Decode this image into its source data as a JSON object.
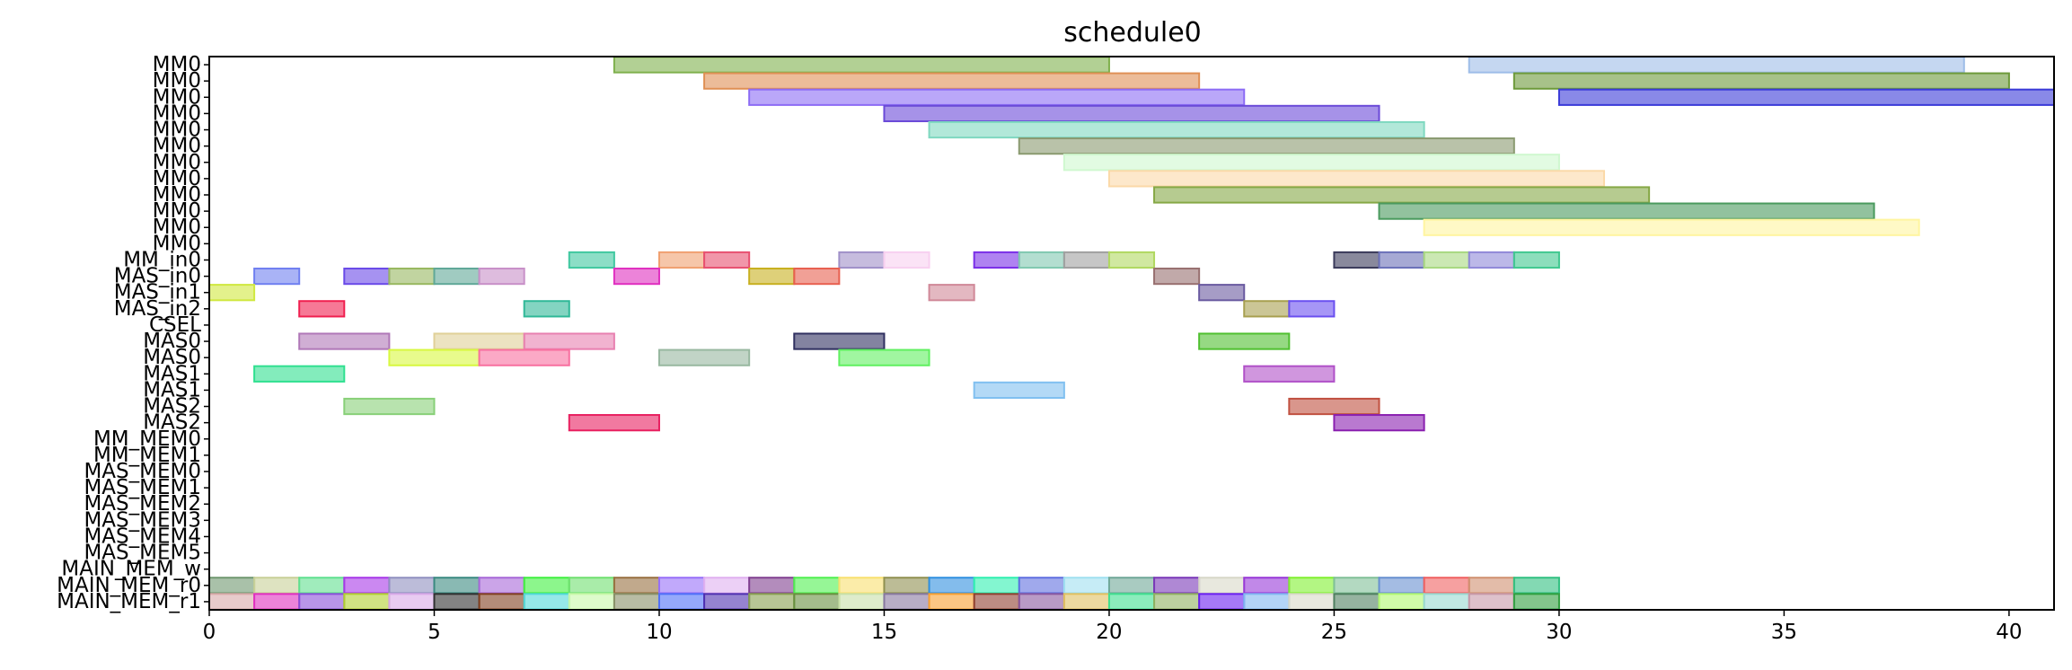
{
  "chart_data": {
    "type": "gantt",
    "title": "schedule0",
    "xlim": [
      0,
      41
    ],
    "x_ticks": [
      0,
      5,
      10,
      15,
      20,
      25,
      30,
      35,
      40
    ],
    "y_labels": [
      "MM0",
      "MM0",
      "MM0",
      "MM0",
      "MM0",
      "MM0",
      "MM0",
      "MM0",
      "MM0",
      "MM0",
      "MM0",
      "MM0",
      "MM_in0",
      "MAS_in0",
      "MAS_in1",
      "MAS_in2",
      "CSEL",
      "MAS0",
      "MAS0",
      "MAS1",
      "MAS1",
      "MAS2",
      "MAS2",
      "MM_MEM0",
      "MM_MEM1",
      "MAS_MEM0",
      "MAS_MEM1",
      "MAS_MEM2",
      "MAS_MEM3",
      "MAS_MEM4",
      "MAS_MEM5",
      "MAIN_MEM_w",
      "MAIN_MEM_r0",
      "MAIN_MEM_r1"
    ],
    "tasks": [
      {
        "row": 0,
        "start": 9,
        "end": 20,
        "color": "#7fb04d"
      },
      {
        "row": 0,
        "start": 28,
        "end": 39,
        "color": "#9ebde8"
      },
      {
        "row": 1,
        "start": 11,
        "end": 22,
        "color": "#e09055"
      },
      {
        "row": 1,
        "start": 29,
        "end": 40,
        "color": "#6d9a3a"
      },
      {
        "row": 2,
        "start": 12,
        "end": 23,
        "color": "#8c6cf5"
      },
      {
        "row": 2,
        "start": 30,
        "end": 41,
        "color": "#3a3ad8"
      },
      {
        "row": 3,
        "start": 15,
        "end": 26,
        "color": "#6a4ad8"
      },
      {
        "row": 4,
        "start": 16,
        "end": 27,
        "color": "#7fd8c0"
      },
      {
        "row": 5,
        "start": 18,
        "end": 29,
        "color": "#8a9a70"
      },
      {
        "row": 6,
        "start": 19,
        "end": 30,
        "color": "#cff8cf"
      },
      {
        "row": 7,
        "start": 20,
        "end": 31,
        "color": "#fbd9a8"
      },
      {
        "row": 8,
        "start": 21,
        "end": 32,
        "color": "#86a846"
      },
      {
        "row": 9,
        "start": 26,
        "end": 37,
        "color": "#4a9a5e"
      },
      {
        "row": 10,
        "start": 27,
        "end": 38,
        "color": "#fff5a0"
      },
      {
        "row": 12,
        "start": 8,
        "end": 9,
        "color": "#40c8a0"
      },
      {
        "row": 12,
        "start": 10,
        "end": 11,
        "color": "#f0a070"
      },
      {
        "row": 12,
        "start": 11,
        "end": 12,
        "color": "#e85070"
      },
      {
        "row": 12,
        "start": 14,
        "end": 15,
        "color": "#a090c8"
      },
      {
        "row": 12,
        "start": 15,
        "end": 16,
        "color": "#f8d0f0"
      },
      {
        "row": 12,
        "start": 17,
        "end": 18,
        "color": "#7a2ee8"
      },
      {
        "row": 12,
        "start": 18,
        "end": 19,
        "color": "#80c8b0"
      },
      {
        "row": 12,
        "start": 19,
        "end": 20,
        "color": "#a0a0a0"
      },
      {
        "row": 12,
        "start": 20,
        "end": 21,
        "color": "#b0d860"
      },
      {
        "row": 12,
        "start": 25,
        "end": 26,
        "color": "#3a3a5a"
      },
      {
        "row": 12,
        "start": 26,
        "end": 27,
        "color": "#6a70b8"
      },
      {
        "row": 12,
        "start": 27,
        "end": 28,
        "color": "#a8d880"
      },
      {
        "row": 12,
        "start": 28,
        "end": 29,
        "color": "#9088d8"
      },
      {
        "row": 12,
        "start": 29,
        "end": 30,
        "color": "#40c890"
      },
      {
        "row": 13,
        "start": 1,
        "end": 2,
        "color": "#7080f0"
      },
      {
        "row": 13,
        "start": 3,
        "end": 4,
        "color": "#6a4ae8"
      },
      {
        "row": 13,
        "start": 4,
        "end": 5,
        "color": "#98b860"
      },
      {
        "row": 13,
        "start": 5,
        "end": 6,
        "color": "#60a898"
      },
      {
        "row": 13,
        "start": 6,
        "end": 7,
        "color": "#c890c8"
      },
      {
        "row": 13,
        "start": 9,
        "end": 10,
        "color": "#e030c0"
      },
      {
        "row": 13,
        "start": 12,
        "end": 13,
        "color": "#c8b020"
      },
      {
        "row": 13,
        "start": 13,
        "end": 14,
        "color": "#e86050"
      },
      {
        "row": 13,
        "start": 21,
        "end": 22,
        "color": "#987070"
      },
      {
        "row": 14,
        "start": 0,
        "end": 1,
        "color": "#d0e840"
      },
      {
        "row": 14,
        "start": 16,
        "end": 17,
        "color": "#d08898"
      },
      {
        "row": 14,
        "start": 22,
        "end": 23,
        "color": "#6a5aa0"
      },
      {
        "row": 15,
        "start": 2,
        "end": 3,
        "color": "#f02050"
      },
      {
        "row": 15,
        "start": 7,
        "end": 8,
        "color": "#30b898"
      },
      {
        "row": 15,
        "start": 23,
        "end": 24,
        "color": "#a8a050"
      },
      {
        "row": 15,
        "start": 24,
        "end": 25,
        "color": "#6a50f0"
      },
      {
        "row": 17,
        "start": 2,
        "end": 4,
        "color": "#b078b8"
      },
      {
        "row": 17,
        "start": 5,
        "end": 7,
        "color": "#e0d098"
      },
      {
        "row": 17,
        "start": 7,
        "end": 9,
        "color": "#e880b0"
      },
      {
        "row": 17,
        "start": 13,
        "end": 15,
        "color": "#303060"
      },
      {
        "row": 17,
        "start": 22,
        "end": 24,
        "color": "#50c030"
      },
      {
        "row": 18,
        "start": 4,
        "end": 6,
        "color": "#d8f840"
      },
      {
        "row": 18,
        "start": 6,
        "end": 8,
        "color": "#f870a0"
      },
      {
        "row": 18,
        "start": 10,
        "end": 12,
        "color": "#98b8a0"
      },
      {
        "row": 18,
        "start": 14,
        "end": 16,
        "color": "#60f060"
      },
      {
        "row": 19,
        "start": 1,
        "end": 3,
        "color": "#30e090"
      },
      {
        "row": 19,
        "start": 23,
        "end": 25,
        "color": "#b050c8"
      },
      {
        "row": 20,
        "start": 17,
        "end": 19,
        "color": "#80c0f0"
      },
      {
        "row": 21,
        "start": 3,
        "end": 5,
        "color": "#88d078"
      },
      {
        "row": 21,
        "start": 24,
        "end": 26,
        "color": "#c05040"
      },
      {
        "row": 22,
        "start": 8,
        "end": 10,
        "color": "#e82060"
      },
      {
        "row": 22,
        "start": 25,
        "end": 27,
        "color": "#8a20b0"
      },
      {
        "row": 32,
        "start": 0,
        "end": 1,
        "color": "#709870"
      },
      {
        "row": 32,
        "start": 1,
        "end": 2,
        "color": "#c8d098"
      },
      {
        "row": 32,
        "start": 2,
        "end": 3,
        "color": "#60e090"
      },
      {
        "row": 32,
        "start": 3,
        "end": 4,
        "color": "#a838e8"
      },
      {
        "row": 32,
        "start": 4,
        "end": 5,
        "color": "#9090c0"
      },
      {
        "row": 32,
        "start": 5,
        "end": 6,
        "color": "#3a8a80"
      },
      {
        "row": 32,
        "start": 6,
        "end": 7,
        "color": "#a868d8"
      },
      {
        "row": 32,
        "start": 7,
        "end": 8,
        "color": "#40f040"
      },
      {
        "row": 32,
        "start": 8,
        "end": 9,
        "color": "#70e070"
      },
      {
        "row": 32,
        "start": 9,
        "end": 10,
        "color": "#987040"
      },
      {
        "row": 32,
        "start": 10,
        "end": 11,
        "color": "#9870f8"
      },
      {
        "row": 32,
        "start": 11,
        "end": 12,
        "color": "#e0b0f0"
      },
      {
        "row": 32,
        "start": 12,
        "end": 13,
        "color": "#804090"
      },
      {
        "row": 32,
        "start": 13,
        "end": 14,
        "color": "#50f050"
      },
      {
        "row": 32,
        "start": 14,
        "end": 15,
        "color": "#f8e070"
      },
      {
        "row": 32,
        "start": 15,
        "end": 16,
        "color": "#909050"
      },
      {
        "row": 32,
        "start": 16,
        "end": 17,
        "color": "#3090e0"
      },
      {
        "row": 32,
        "start": 17,
        "end": 18,
        "color": "#30f0b0"
      },
      {
        "row": 32,
        "start": 18,
        "end": 19,
        "color": "#6070e0"
      },
      {
        "row": 32,
        "start": 19,
        "end": 20,
        "color": "#a0e0f0"
      },
      {
        "row": 32,
        "start": 20,
        "end": 21,
        "color": "#70a898"
      },
      {
        "row": 32,
        "start": 21,
        "end": 22,
        "color": "#7a38b8"
      },
      {
        "row": 32,
        "start": 22,
        "end": 23,
        "color": "#d8d8c8"
      },
      {
        "row": 32,
        "start": 23,
        "end": 24,
        "color": "#9838d8"
      },
      {
        "row": 32,
        "start": 24,
        "end": 25,
        "color": "#80f030"
      },
      {
        "row": 32,
        "start": 25,
        "end": 26,
        "color": "#80c098"
      },
      {
        "row": 32,
        "start": 26,
        "end": 27,
        "color": "#6890d0"
      },
      {
        "row": 32,
        "start": 27,
        "end": 28,
        "color": "#f06060"
      },
      {
        "row": 32,
        "start": 28,
        "end": 29,
        "color": "#d09070"
      },
      {
        "row": 32,
        "start": 29,
        "end": 30,
        "color": "#30c080"
      },
      {
        "row": 33,
        "start": 0,
        "end": 1,
        "color": "#d8a8a8"
      },
      {
        "row": 33,
        "start": 1,
        "end": 2,
        "color": "#e030c0"
      },
      {
        "row": 33,
        "start": 2,
        "end": 3,
        "color": "#8a50d8"
      },
      {
        "row": 33,
        "start": 3,
        "end": 4,
        "color": "#b0d030"
      },
      {
        "row": 33,
        "start": 4,
        "end": 5,
        "color": "#d8a8e8"
      },
      {
        "row": 33,
        "start": 5,
        "end": 6,
        "color": "#303030"
      },
      {
        "row": 33,
        "start": 6,
        "end": 7,
        "color": "#804020"
      },
      {
        "row": 33,
        "start": 7,
        "end": 8,
        "color": "#50d8d8"
      },
      {
        "row": 33,
        "start": 8,
        "end": 9,
        "color": "#c8f8a8"
      },
      {
        "row": 33,
        "start": 9,
        "end": 10,
        "color": "#889068"
      },
      {
        "row": 33,
        "start": 10,
        "end": 11,
        "color": "#5070f8"
      },
      {
        "row": 33,
        "start": 11,
        "end": 12,
        "color": "#5030b0"
      },
      {
        "row": 33,
        "start": 12,
        "end": 13,
        "color": "#88a050"
      },
      {
        "row": 33,
        "start": 13,
        "end": 14,
        "color": "#689040"
      },
      {
        "row": 33,
        "start": 14,
        "end": 15,
        "color": "#c8e0a8"
      },
      {
        "row": 33,
        "start": 15,
        "end": 16,
        "color": "#8878a0"
      },
      {
        "row": 33,
        "start": 16,
        "end": 17,
        "color": "#f8a030"
      },
      {
        "row": 33,
        "start": 17,
        "end": 18,
        "color": "#904030"
      },
      {
        "row": 33,
        "start": 18,
        "end": 19,
        "color": "#8a58a0"
      },
      {
        "row": 33,
        "start": 19,
        "end": 20,
        "color": "#e0c060"
      },
      {
        "row": 33,
        "start": 20,
        "end": 21,
        "color": "#40e090"
      },
      {
        "row": 33,
        "start": 21,
        "end": 22,
        "color": "#90b060"
      },
      {
        "row": 33,
        "start": 22,
        "end": 23,
        "color": "#6a20f0"
      },
      {
        "row": 33,
        "start": 23,
        "end": 24,
        "color": "#80b8f0"
      },
      {
        "row": 33,
        "start": 24,
        "end": 25,
        "color": "#d8d8c8"
      },
      {
        "row": 33,
        "start": 25,
        "end": 26,
        "color": "#508060"
      },
      {
        "row": 33,
        "start": 26,
        "end": 27,
        "color": "#b0f870"
      },
      {
        "row": 33,
        "start": 27,
        "end": 28,
        "color": "#98d8d0"
      },
      {
        "row": 33,
        "start": 28,
        "end": 29,
        "color": "#c898a8"
      },
      {
        "row": 33,
        "start": 29,
        "end": 30,
        "color": "#30a040"
      }
    ]
  }
}
